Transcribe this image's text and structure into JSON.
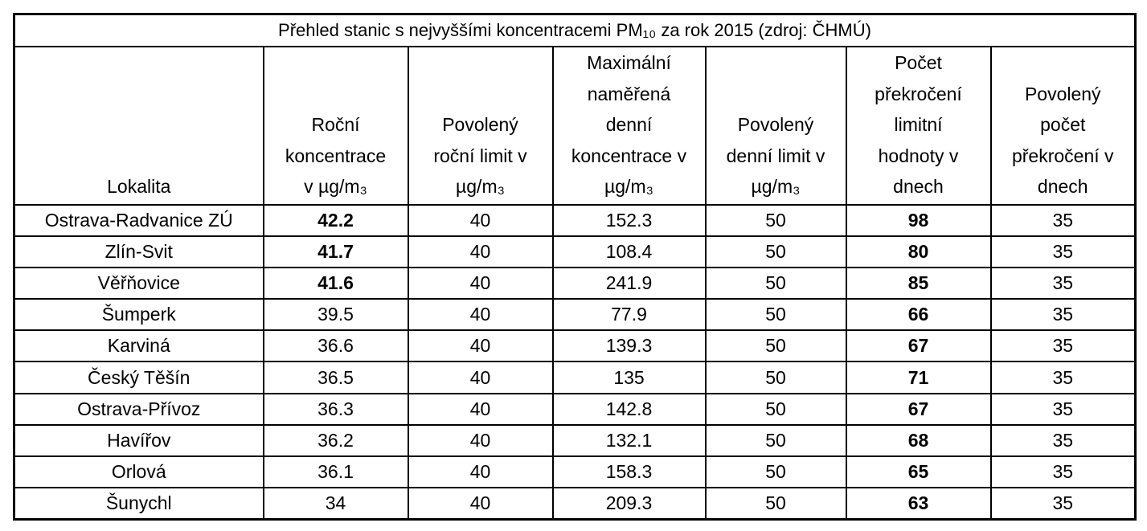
{
  "table": {
    "title": "Přehled stanic s nejvyššími koncentracemi PM₁₀ za rok 2015 (zdroj: ČHMÚ)",
    "columns": [
      {
        "lines": [
          "Lokalita"
        ]
      },
      {
        "lines": [
          "Roční",
          "koncentrace",
          "v µg/m₃"
        ]
      },
      {
        "lines": [
          "Povolený",
          "roční limit v",
          "µg/m₃"
        ]
      },
      {
        "lines": [
          "Maximální",
          "naměřená",
          "denní",
          "koncentrace v",
          "µg/m₃"
        ]
      },
      {
        "lines": [
          "Povolený",
          "denní limit v",
          "µg/m₃"
        ]
      },
      {
        "lines": [
          "Počet",
          "překročení",
          "limitní",
          "hodnoty v",
          "dnech"
        ]
      },
      {
        "lines": [
          "Povolený",
          "počet",
          "překročení v",
          "dnech"
        ]
      }
    ],
    "rows": [
      [
        "Ostrava-Radvanice ZÚ",
        42.2,
        40,
        152.3,
        50,
        98,
        35
      ],
      [
        "Zlín-Svit",
        41.7,
        40,
        108.4,
        50,
        80,
        35
      ],
      [
        "Věřňovice",
        41.6,
        40,
        241.9,
        50,
        85,
        35
      ],
      [
        "Šumperk",
        39.5,
        40,
        77.9,
        50,
        66,
        35
      ],
      [
        "Karviná",
        36.6,
        40,
        139.3,
        50,
        67,
        35
      ],
      [
        "Český Těšín",
        36.5,
        40,
        135,
        50,
        71,
        35
      ],
      [
        "Ostrava-Přívoz",
        36.3,
        40,
        142.8,
        50,
        67,
        35
      ],
      [
        "Havířov",
        36.2,
        40,
        132.1,
        50,
        68,
        35
      ],
      [
        "Orlová",
        36.1,
        40,
        158.3,
        50,
        65,
        35
      ],
      [
        "Šunychl",
        34,
        40,
        209.3,
        50,
        63,
        35
      ]
    ]
  }
}
